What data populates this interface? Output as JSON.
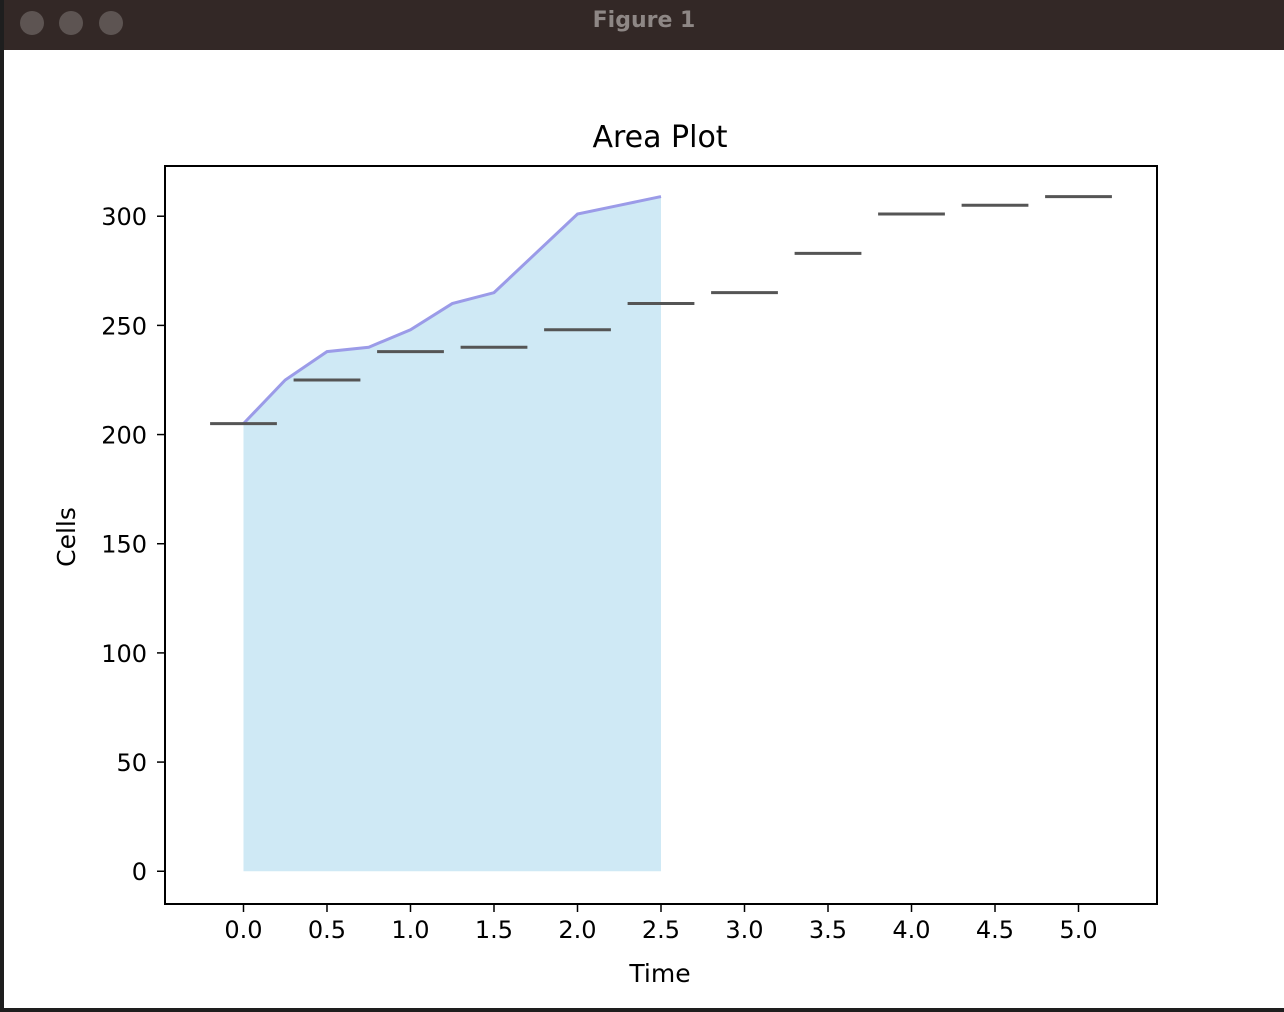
{
  "window": {
    "title": "Figure 1",
    "buttons": [
      "close",
      "minimize",
      "zoom"
    ]
  },
  "chart_data": {
    "type": "area",
    "title": "Area Plot",
    "xlabel": "Time",
    "ylabel": "Cells",
    "x_ticks": [
      "0.0",
      "0.5",
      "1.0",
      "1.5",
      "2.0",
      "2.5",
      "3.0",
      "3.5",
      "4.0",
      "4.5",
      "5.0"
    ],
    "y_ticks": [
      "0",
      "50",
      "100",
      "150",
      "200",
      "250",
      "300"
    ],
    "xlim": [
      -0.47,
      5.47
    ],
    "ylim": [
      -15,
      323
    ],
    "area": {
      "x": [
        0,
        0.25,
        0.5,
        0.75,
        1.0,
        1.25,
        1.5,
        1.75,
        2.0,
        2.25,
        2.5
      ],
      "y": [
        205,
        225,
        238,
        240,
        248,
        260,
        265,
        283,
        301,
        305,
        309
      ],
      "fill_color": "#cfe9f5",
      "line_color": "#9b9be8"
    },
    "markers": {
      "x": [
        0,
        0.5,
        1.0,
        1.5,
        2.0,
        2.5,
        3.0,
        3.5,
        4.0,
        4.5,
        5.0
      ],
      "y": [
        205,
        225,
        238,
        240,
        248,
        260,
        265,
        283,
        301,
        305,
        309
      ],
      "half_width": 0.2,
      "color": "#555555"
    }
  }
}
